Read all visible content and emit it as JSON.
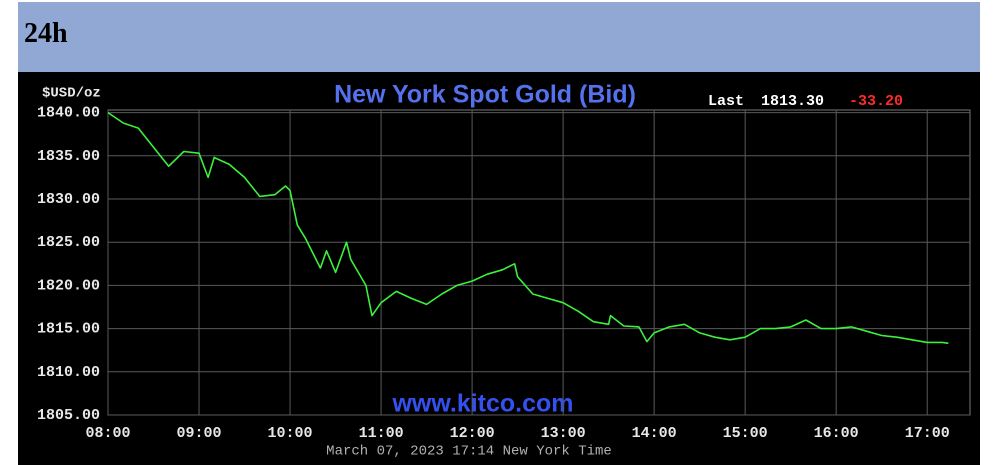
{
  "header": {
    "title": "24h"
  },
  "chart_data": {
    "type": "line",
    "title": "New York Spot Gold (Bid)",
    "y_label": "$USD/oz",
    "last_label": "Last",
    "last_value": "1813.30",
    "change": "-33.20",
    "watermark": "www.kitco.com",
    "x_label": "March 07, 2023 17:14 New York Time",
    "color": "#3cf03c",
    "grid": true,
    "x": [
      8,
      8.167,
      8.333,
      8.5,
      8.667,
      8.833,
      9,
      9.1,
      9.167,
      9.333,
      9.5,
      9.667,
      9.833,
      9.95,
      10,
      10.08,
      10.167,
      10.333,
      10.4,
      10.5,
      10.62,
      10.667,
      10.833,
      10.9,
      11,
      11.167,
      11.333,
      11.5,
      11.667,
      11.833,
      12,
      12.167,
      12.333,
      12.467,
      12.5,
      12.667,
      12.833,
      13,
      13.167,
      13.333,
      13.5,
      13.52,
      13.667,
      13.833,
      13.92,
      14,
      14.167,
      14.333,
      14.5,
      14.667,
      14.833,
      15,
      15.167,
      15.333,
      15.5,
      15.667,
      15.833,
      16,
      16.167,
      16.333,
      16.5,
      16.667,
      16.833,
      17,
      17.167,
      17.233
    ],
    "values": [
      1840,
      1838.8,
      1838.2,
      1836,
      1833.8,
      1835.5,
      1835.3,
      1832.5,
      1834.8,
      1834,
      1832.5,
      1830.3,
      1830.5,
      1831.5,
      1831,
      1827,
      1825.5,
      1822,
      1824,
      1821.5,
      1825,
      1823,
      1820,
      1816.5,
      1818,
      1819.3,
      1818.5,
      1817.8,
      1819,
      1820,
      1820.5,
      1821.3,
      1821.8,
      1822.5,
      1821,
      1819,
      1818.5,
      1818,
      1817,
      1815.8,
      1815.5,
      1816.5,
      1815.3,
      1815.2,
      1813.5,
      1814.5,
      1815.2,
      1815.5,
      1814.5,
      1814,
      1813.7,
      1814,
      1815,
      1815,
      1815.2,
      1816,
      1815,
      1815,
      1815.2,
      1814.7,
      1814.2,
      1814,
      1813.7,
      1813.4,
      1813.4,
      1813.3
    ],
    "xlim": [
      8,
      17.47
    ],
    "ylim": [
      1805,
      1840.3
    ],
    "xticks": [
      {
        "value": 8,
        "label": "08:00"
      },
      {
        "value": 9,
        "label": "09:00"
      },
      {
        "value": 10,
        "label": "10:00"
      },
      {
        "value": 11,
        "label": "11:00"
      },
      {
        "value": 12,
        "label": "12:00"
      },
      {
        "value": 13,
        "label": "13:00"
      },
      {
        "value": 14,
        "label": "14:00"
      },
      {
        "value": 15,
        "label": "15:00"
      },
      {
        "value": 16,
        "label": "16:00"
      },
      {
        "value": 17,
        "label": "17:00"
      }
    ],
    "yticks": [
      {
        "value": 1805,
        "label": "1805.00"
      },
      {
        "value": 1810,
        "label": "1810.00"
      },
      {
        "value": 1815,
        "label": "1815.00"
      },
      {
        "value": 1820,
        "label": "1820.00"
      },
      {
        "value": 1825,
        "label": "1825.00"
      },
      {
        "value": 1830,
        "label": "1830.00"
      },
      {
        "value": 1835,
        "label": "1835.00"
      },
      {
        "value": 1840,
        "label": "1840.00"
      }
    ]
  }
}
